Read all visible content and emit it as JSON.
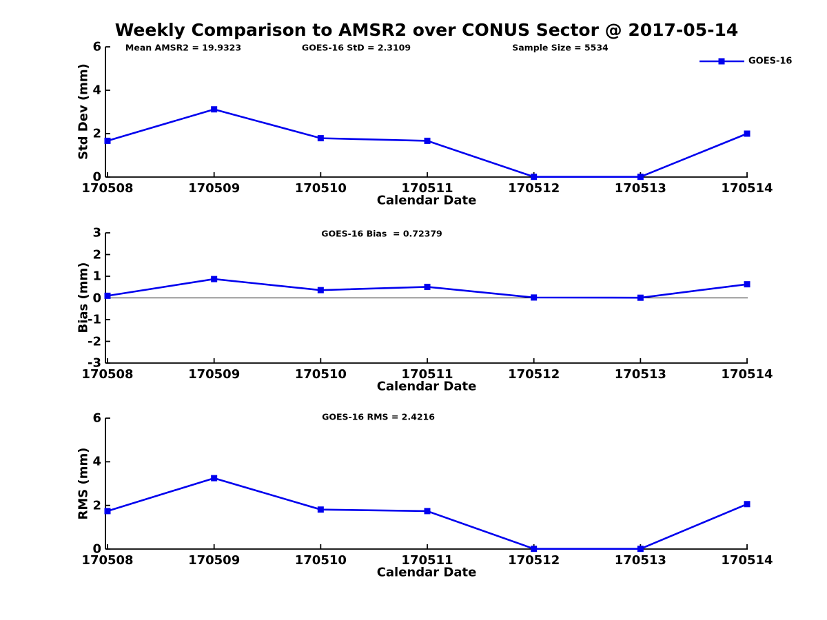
{
  "figure": {
    "title": "Weekly Comparison to AMSR2 over CONUS Sector @ 2017-05-14",
    "background_color": "#ffffff",
    "line_color": "#0000EE",
    "axis_color": "#000000",
    "text_color": "#000000",
    "legend": {
      "label": "GOES-16",
      "position": "top-right",
      "marker": "square"
    }
  },
  "chart_data": [
    {
      "type": "line",
      "id": "stddev",
      "ylabel": "Std Dev (mm)",
      "xlabel": "Calendar Date",
      "categories": [
        "170508",
        "170509",
        "170510",
        "170511",
        "170512",
        "170513",
        "170514"
      ],
      "series": [
        {
          "name": "GOES-16",
          "values": [
            1.67,
            3.12,
            1.79,
            1.67,
            0.01,
            0.01,
            2.0
          ]
        }
      ],
      "ylim": [
        0,
        6
      ],
      "yticks": [
        0,
        2,
        4,
        6
      ],
      "grid": false,
      "zero_line": false,
      "marker": "square",
      "annotations": [
        {
          "text": "Mean AMSR2 = 19.9323",
          "x_center": 266
        },
        {
          "text": "GOES-16 StD = 2.3109",
          "x_center": 517
        },
        {
          "text": "Sample Size = 5534",
          "x_center": 813
        }
      ]
    },
    {
      "type": "line",
      "id": "bias",
      "ylabel": "Bias (mm)",
      "xlabel": "Calendar Date",
      "categories": [
        "170508",
        "170509",
        "170510",
        "170511",
        "170512",
        "170513",
        "170514"
      ],
      "series": [
        {
          "name": "GOES-16",
          "values": [
            0.1,
            0.87,
            0.36,
            0.51,
            0.02,
            0.01,
            0.63
          ]
        }
      ],
      "ylim": [
        -3,
        3
      ],
      "yticks": [
        -3,
        -2,
        -1,
        0,
        1,
        2,
        3
      ],
      "grid": false,
      "zero_line": true,
      "marker": "square",
      "annotations": [
        {
          "text": "GOES-16 Bias  = 0.72379",
          "x_center": 554
        }
      ]
    },
    {
      "type": "line",
      "id": "rms",
      "ylabel": "RMS (mm)",
      "xlabel": "Calendar Date",
      "categories": [
        "170508",
        "170509",
        "170510",
        "170511",
        "170512",
        "170513",
        "170514"
      ],
      "series": [
        {
          "name": "GOES-16",
          "values": [
            1.74,
            3.25,
            1.81,
            1.74,
            0.01,
            0.01,
            2.06
          ]
        }
      ],
      "ylim": [
        0,
        6
      ],
      "yticks": [
        0,
        2,
        4,
        6
      ],
      "grid": false,
      "zero_line": false,
      "marker": "square",
      "annotations": [
        {
          "text": "GOES-16 RMS = 2.4216",
          "x_center": 549
        }
      ]
    }
  ]
}
